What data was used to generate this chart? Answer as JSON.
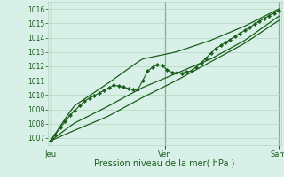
{
  "bg_color": "#d8f0e8",
  "plot_bg_color": "#d8f0e8",
  "grid_color": "#b0d8c0",
  "line_color": "#1a5c1a",
  "marker_color": "#1a5c1a",
  "ylabel_ticks": [
    1007,
    1008,
    1009,
    1010,
    1011,
    1012,
    1013,
    1014,
    1015,
    1016
  ],
  "ylim": [
    1006.5,
    1016.5
  ],
  "xlabel": "Pression niveau de la mer( hPa )",
  "xtick_labels": [
    "Jeu",
    "Ven",
    "Sam"
  ],
  "xtick_positions": [
    0.0,
    0.5,
    1.0
  ],
  "x_vlines": [
    0.0,
    0.5,
    1.0
  ],
  "font_color": "#1a5c1a",
  "font_size_y": 5.5,
  "font_size_x": 6.0,
  "font_size_label": 7.0,
  "xlim": [
    -0.01,
    1.01
  ]
}
